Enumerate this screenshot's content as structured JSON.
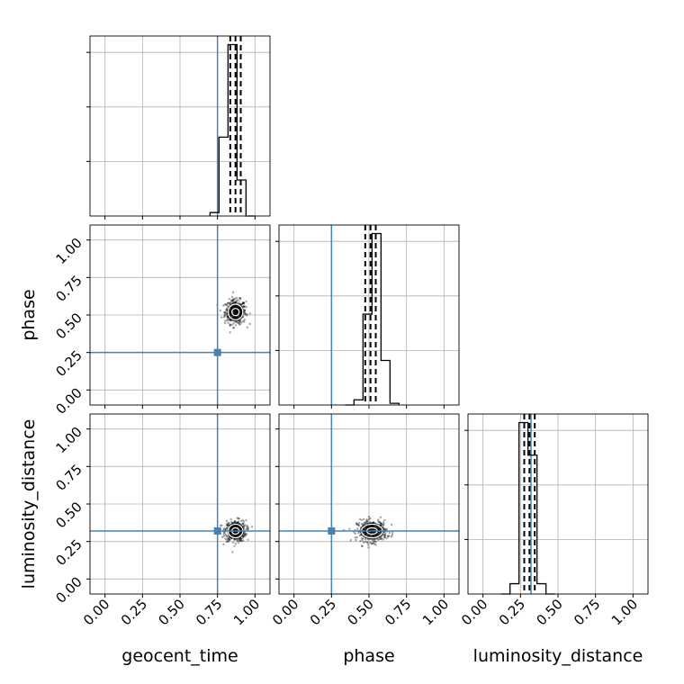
{
  "chart_data": {
    "type": "corner",
    "parameters": [
      "geocent_time",
      "phase",
      "luminosity_distance"
    ],
    "axis_range": [
      -0.1,
      1.1
    ],
    "ticks": [
      0.0,
      0.25,
      0.5,
      0.75,
      1.0
    ],
    "tick_labels": [
      "0.00",
      "0.25",
      "0.50",
      "0.75",
      "1.00"
    ],
    "truths": {
      "geocent_time": 0.75,
      "phase": 0.25,
      "luminosity_distance": 0.32
    },
    "quantiles": {
      "geocent_time": [
        0.835,
        0.87,
        0.905
      ],
      "phase": [
        0.475,
        0.51,
        0.545
      ],
      "luminosity_distance": [
        0.275,
        0.31,
        0.345
      ]
    },
    "histograms": {
      "geocent_time": {
        "bin_edges": [
          0.7,
          0.76,
          0.82,
          0.88,
          0.94,
          1.0
        ],
        "counts": [
          0.02,
          0.46,
          1.0,
          0.21,
          0.0
        ],
        "ylim": [
          0,
          1.05
        ]
      },
      "phase": {
        "bin_edges": [
          0.34,
          0.4,
          0.46,
          0.52,
          0.58,
          0.64,
          0.7
        ],
        "counts": [
          0.0,
          0.03,
          0.53,
          1.0,
          0.26,
          0.01
        ],
        "ylim": [
          0,
          1.05
        ]
      },
      "luminosity_distance": {
        "bin_edges": [
          0.12,
          0.18,
          0.24,
          0.3,
          0.36,
          0.42,
          0.48
        ],
        "counts": [
          0.0,
          0.06,
          1.0,
          0.81,
          0.06,
          0.0
        ],
        "ylim": [
          0,
          1.05
        ]
      }
    },
    "scatter_2d": [
      {
        "x": "geocent_time",
        "y": "phase",
        "center": [
          0.87,
          0.52
        ],
        "spread": [
          0.035,
          0.04
        ]
      },
      {
        "x": "geocent_time",
        "y": "luminosity_distance",
        "center": [
          0.87,
          0.32
        ],
        "spread": [
          0.035,
          0.035
        ]
      },
      {
        "x": "phase",
        "y": "luminosity_distance",
        "center": [
          0.52,
          0.32
        ],
        "spread": [
          0.05,
          0.035
        ]
      }
    ],
    "grid": true,
    "colors": {
      "truth": "#4682b4",
      "hist": "#000000",
      "quantile": "#000000",
      "grid": "#b0b0b0"
    }
  }
}
